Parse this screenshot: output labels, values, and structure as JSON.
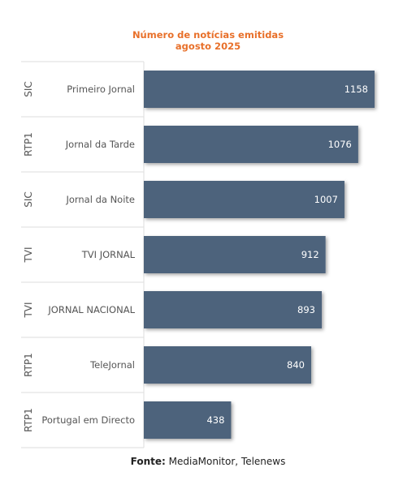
{
  "chart_data": {
    "type": "bar",
    "orientation": "horizontal",
    "title": "Número de notícias emitidas",
    "subtitle": "agosto 2025",
    "channels": [
      "SIC",
      "RTP1",
      "SIC",
      "TVI",
      "TVI",
      "RTP1",
      "RTP1"
    ],
    "categories": [
      "Primeiro Jornal",
      "Jornal da Tarde",
      "Jornal da Noite",
      "TVI JORNAL",
      "JORNAL NACIONAL",
      "TeleJornal",
      "Portugal em Directo"
    ],
    "values": [
      1158,
      1076,
      1007,
      912,
      893,
      840,
      438
    ],
    "xlim": [
      0,
      1200
    ],
    "bar_color": "#4e647c",
    "label_color": "#ffffff",
    "grid": false
  },
  "footer": {
    "source_label": "Fonte:",
    "source_text": "MediaMonitor, Telenews"
  },
  "colors": {
    "title": "#e8702a",
    "text": "#555555",
    "divider": "#dddddd"
  }
}
